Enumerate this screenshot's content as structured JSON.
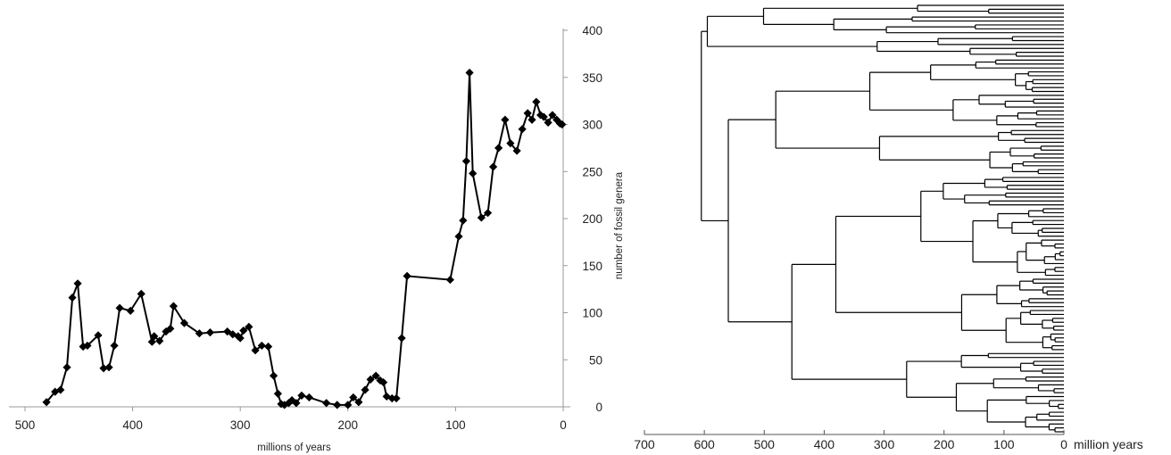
{
  "chart_data": [
    {
      "type": "line",
      "title": "",
      "xlabel": "millions of years",
      "ylabel": "number of fossil genera",
      "xlim": [
        500,
        0
      ],
      "ylim": [
        0,
        400
      ],
      "x_reversed": true,
      "y_axis_side": "right",
      "grid": false,
      "xticks": [
        500,
        400,
        300,
        200,
        100,
        0
      ],
      "yticks": [
        0,
        50,
        100,
        150,
        200,
        250,
        300,
        350,
        400
      ],
      "marker": "diamond",
      "color": "#000000",
      "series": [
        {
          "x": [
            480,
            472,
            467,
            461,
            456,
            451,
            446,
            442,
            432,
            427,
            422,
            417,
            412,
            402,
            392,
            382,
            380,
            375,
            369,
            365,
            362,
            352,
            338,
            328,
            312,
            307,
            302,
            300,
            297,
            292,
            286,
            280,
            274,
            269,
            265,
            262,
            259,
            255,
            252,
            248,
            243,
            236,
            220,
            210,
            200,
            195,
            190,
            184,
            179,
            174,
            170,
            167,
            164,
            159,
            155,
            150,
            145,
            105,
            97,
            93,
            90,
            87,
            84,
            76,
            70,
            65,
            60,
            54,
            49,
            43,
            38,
            33,
            29,
            25,
            21,
            18,
            14,
            10,
            6,
            3,
            1
          ],
          "y": [
            5,
            16,
            18,
            42,
            116,
            131,
            64,
            65,
            76,
            41,
            42,
            65,
            105,
            102,
            120,
            69,
            75,
            70,
            80,
            83,
            107,
            89,
            78,
            79,
            80,
            77,
            75,
            73,
            81,
            85,
            60,
            65,
            64,
            33,
            14,
            3,
            2,
            4,
            7,
            4,
            12,
            10,
            4,
            2,
            2,
            10,
            5,
            18,
            29,
            33,
            28,
            26,
            11,
            9,
            9,
            73,
            139,
            135,
            181,
            198,
            261,
            355,
            248,
            201,
            206,
            255,
            275,
            305,
            280,
            272,
            295,
            312,
            305,
            324,
            310,
            308,
            302,
            310,
            305,
            301,
            300
          ]
        }
      ]
    },
    {
      "type": "tree",
      "title": "",
      "xlabel": "million years",
      "xlim": [
        700,
        0
      ],
      "x_reversed": true,
      "xticks": [
        700,
        600,
        500,
        400,
        300,
        200,
        100,
        0
      ],
      "tips": 110,
      "root_age": 605,
      "clades": [
        {
          "name": "",
          "age": 605,
          "children": [
            "A",
            "B"
          ]
        },
        {
          "name": "A",
          "age": 595,
          "tips": 14,
          "subclade_ages": [
            445,
            360,
            110,
            95,
            85,
            70,
            60,
            40,
            30,
            20,
            15,
            10,
            5
          ]
        },
        {
          "name": "B",
          "age": 560,
          "tips": 96,
          "subclade_ages": [
            375,
            320,
            300,
            280,
            250,
            230,
            210,
            190,
            170,
            150,
            130,
            110,
            90,
            70,
            50,
            30,
            20,
            10
          ]
        }
      ]
    }
  ]
}
